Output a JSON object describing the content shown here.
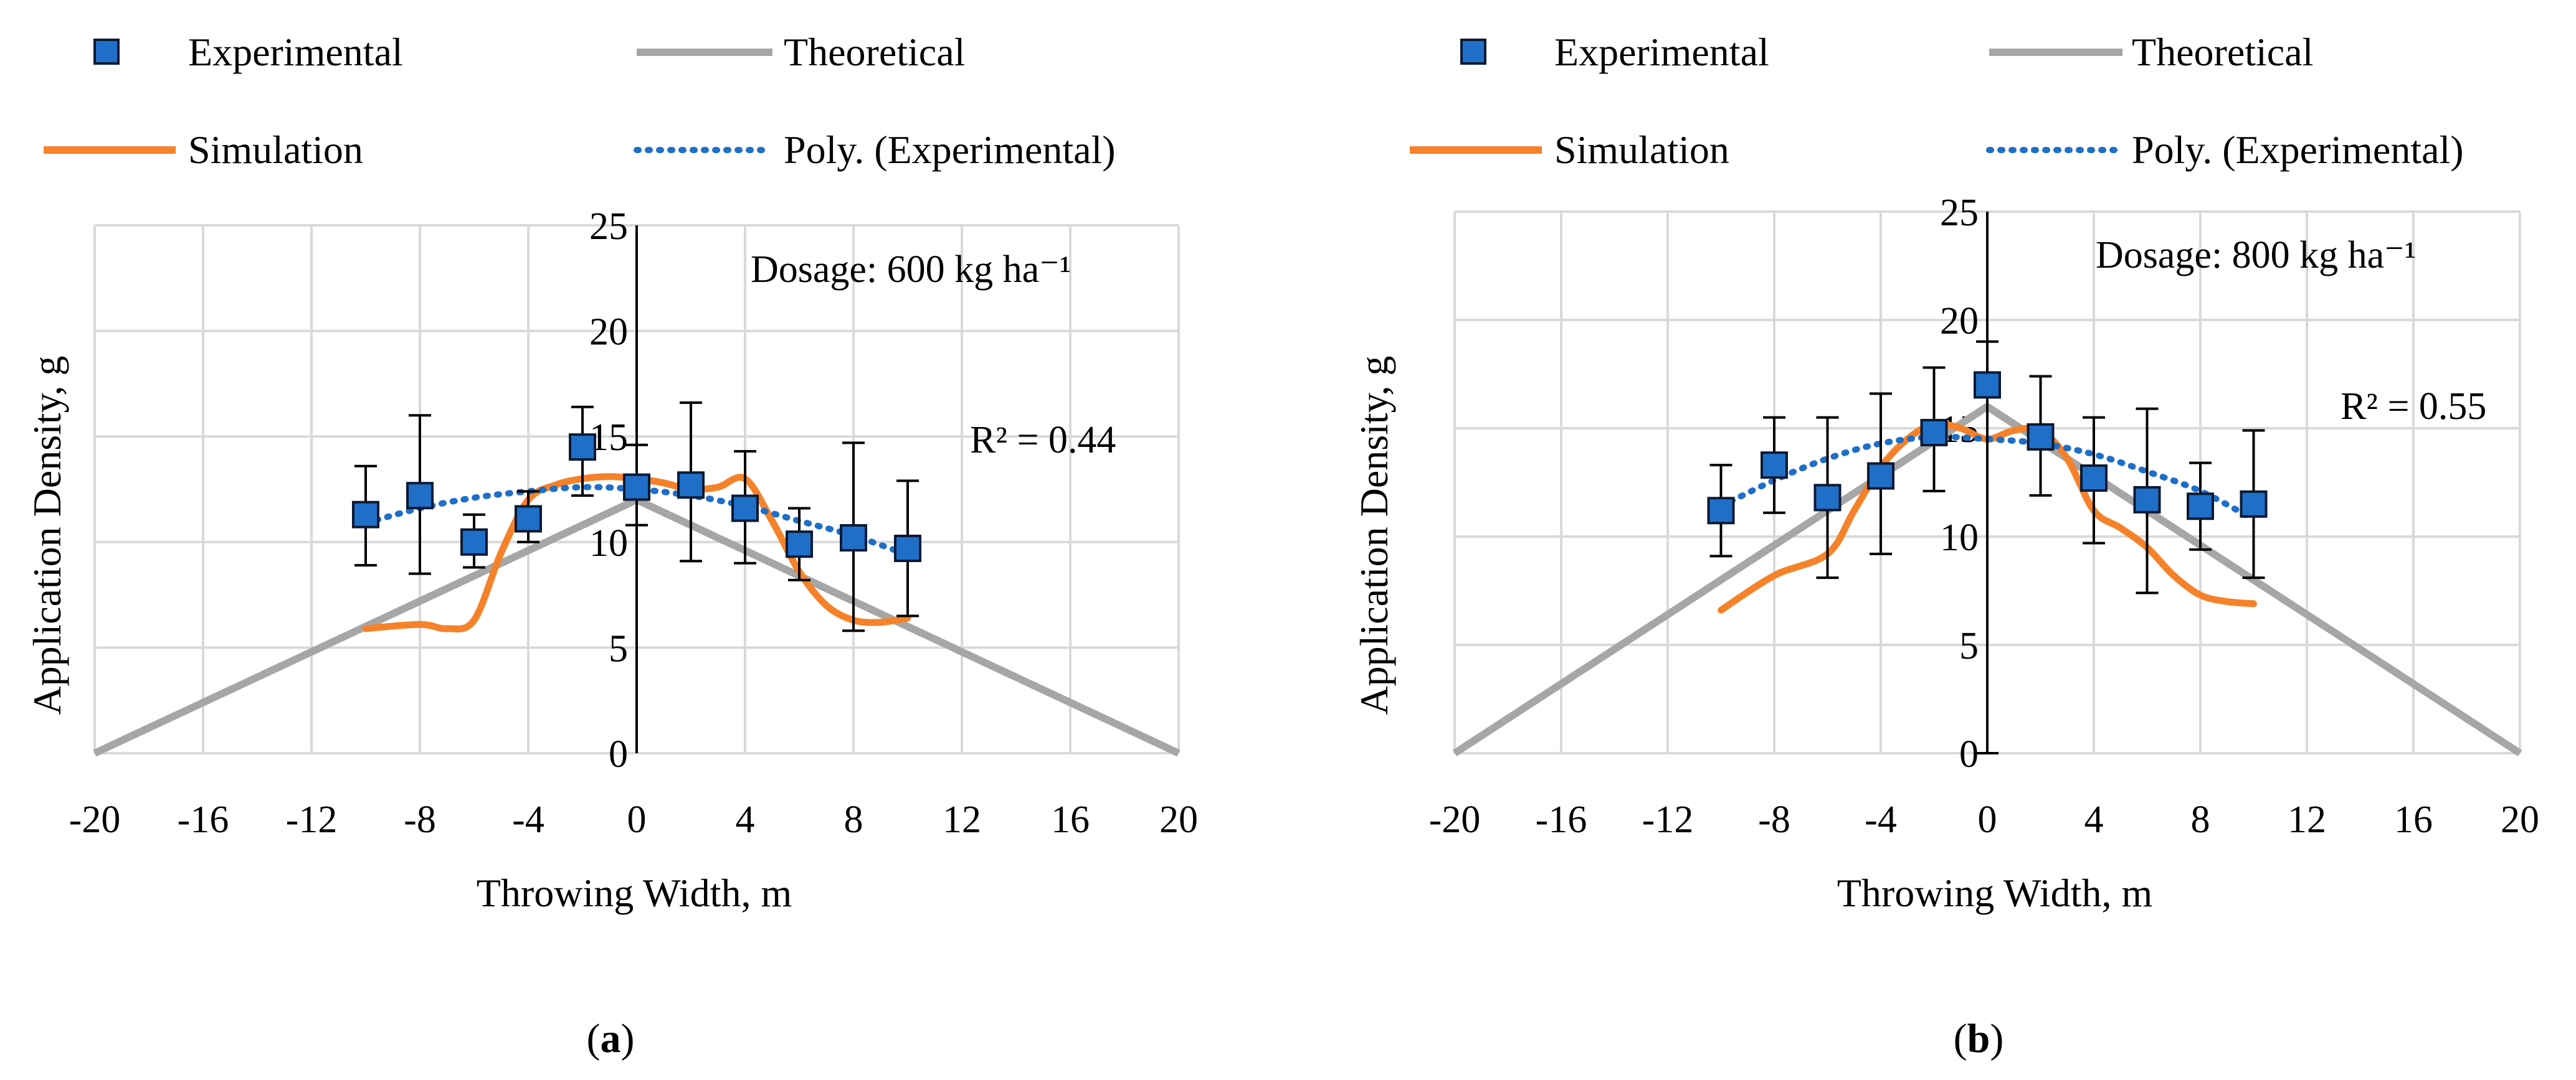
{
  "chart_data": [
    {
      "id": "a",
      "type": "scatter",
      "sublabel": "(a)",
      "sublabel_letter": "a",
      "xlabel": "Throwing Width, m",
      "ylabel": "Application Density, g",
      "xlim": [
        -20,
        20
      ],
      "ylim": [
        0,
        25
      ],
      "xticks": [
        -20,
        -16,
        -12,
        -8,
        -4,
        0,
        4,
        8,
        12,
        16,
        20
      ],
      "yticks": [
        0,
        5,
        10,
        15,
        20,
        25
      ],
      "grid": true,
      "legend_position": "top",
      "annotation_dosage": "Dosage: 600 kg ha⁻¹",
      "annotation_r2": "R² = 0.44",
      "legend": {
        "experimental": "Experimental",
        "theoretical": "Theoretical",
        "simulation": "Simulation",
        "poly": "Poly. (Experimental)"
      },
      "series": [
        {
          "name": "Experimental",
          "kind": "points",
          "x": [
            -10,
            -8,
            -6,
            -4,
            -2,
            0,
            2,
            4,
            6,
            8,
            10
          ],
          "y": [
            11.3,
            12.2,
            10.0,
            11.1,
            14.5,
            12.6,
            12.7,
            11.6,
            9.9,
            10.2,
            9.7
          ],
          "err_low": [
            8.9,
            8.5,
            8.8,
            10.0,
            12.2,
            10.8,
            9.1,
            9.0,
            8.2,
            5.8,
            6.5
          ],
          "err_high": [
            13.6,
            16.0,
            11.3,
            12.4,
            16.4,
            14.6,
            16.6,
            14.3,
            11.6,
            14.7,
            12.9
          ]
        },
        {
          "name": "Theoretical",
          "kind": "line",
          "x": [
            -20,
            0,
            20
          ],
          "y": [
            0,
            12,
            0
          ]
        },
        {
          "name": "Simulation",
          "kind": "line",
          "x": [
            -10,
            -8,
            -7,
            -6,
            -5,
            -4,
            -3,
            -2,
            -1,
            0,
            1,
            2,
            3,
            4,
            5,
            6,
            7,
            8,
            9,
            10
          ],
          "y": [
            5.9,
            6.1,
            5.9,
            6.3,
            9.5,
            12.0,
            12.7,
            13.0,
            13.1,
            13.0,
            12.8,
            12.5,
            12.6,
            13.0,
            11.0,
            8.6,
            7.0,
            6.3,
            6.2,
            6.4
          ]
        },
        {
          "name": "Poly. (Experimental)",
          "kind": "line",
          "x": [
            -10,
            -8,
            -6,
            -4,
            -2,
            0,
            2,
            4,
            6,
            8,
            10
          ],
          "y": [
            10.9,
            11.6,
            12.1,
            12.4,
            12.6,
            12.5,
            12.2,
            11.7,
            11.0,
            10.3,
            9.4
          ]
        }
      ]
    },
    {
      "id": "b",
      "type": "scatter",
      "sublabel": "(b)",
      "sublabel_letter": "b",
      "xlabel": "Throwing Width, m",
      "ylabel": "Application Density, g",
      "xlim": [
        -20,
        20
      ],
      "ylim": [
        0,
        25
      ],
      "xticks": [
        -20,
        -16,
        -12,
        -8,
        -4,
        0,
        4,
        8,
        12,
        16,
        20
      ],
      "yticks": [
        0,
        5,
        10,
        15,
        20,
        25
      ],
      "grid": true,
      "legend_position": "top",
      "annotation_dosage": "Dosage: 800 kg ha⁻¹",
      "annotation_r2": "R² = 0.55",
      "legend": {
        "experimental": "Experimental",
        "theoretical": "Theoretical",
        "simulation": "Simulation",
        "poly": "Poly. (Experimental)"
      },
      "series": [
        {
          "name": "Experimental",
          "kind": "points",
          "x": [
            -10,
            -8,
            -6,
            -4,
            -2,
            0,
            2,
            4,
            6,
            8,
            10
          ],
          "y": [
            11.2,
            13.3,
            11.8,
            12.8,
            14.8,
            17.0,
            14.6,
            12.7,
            11.7,
            11.4,
            11.5
          ],
          "err_low": [
            9.1,
            11.1,
            8.1,
            9.2,
            12.1,
            0,
            11.9,
            9.7,
            7.4,
            9.4,
            8.1
          ],
          "err_high": [
            13.3,
            15.5,
            15.5,
            16.6,
            17.8,
            19.0,
            17.4,
            15.5,
            15.9,
            13.4,
            14.9
          ]
        },
        {
          "name": "Theoretical",
          "kind": "line",
          "x": [
            -20,
            0,
            20
          ],
          "y": [
            0,
            16,
            0
          ]
        },
        {
          "name": "Simulation",
          "kind": "line",
          "x": [
            -10,
            -8,
            -6,
            -5,
            -4,
            -3,
            -2,
            -1,
            0,
            1,
            2,
            3,
            4,
            5,
            6,
            7,
            8,
            9,
            10
          ],
          "y": [
            6.6,
            8.2,
            9.2,
            11.2,
            13.2,
            14.5,
            15.2,
            15.0,
            14.5,
            14.9,
            14.9,
            13.6,
            11.2,
            10.4,
            9.5,
            8.2,
            7.3,
            7.0,
            6.9
          ]
        },
        {
          "name": "Poly. (Experimental)",
          "kind": "line",
          "x": [
            -10,
            -8,
            -6,
            -4,
            -2,
            0,
            2,
            4,
            6,
            8,
            10
          ],
          "y": [
            11.4,
            12.6,
            13.6,
            14.3,
            14.6,
            14.5,
            14.3,
            13.8,
            13.0,
            12.1,
            10.8
          ]
        }
      ]
    }
  ],
  "colors": {
    "experimental_fill": "#1f6fc8",
    "experimental_stroke": "#0a1a33",
    "theoretical": "#a6a6a6",
    "simulation": "#f5822a",
    "poly": "#1f6fc8",
    "grid": "#d9d9d9",
    "axis": "#000000",
    "tick_text": "#595959"
  }
}
